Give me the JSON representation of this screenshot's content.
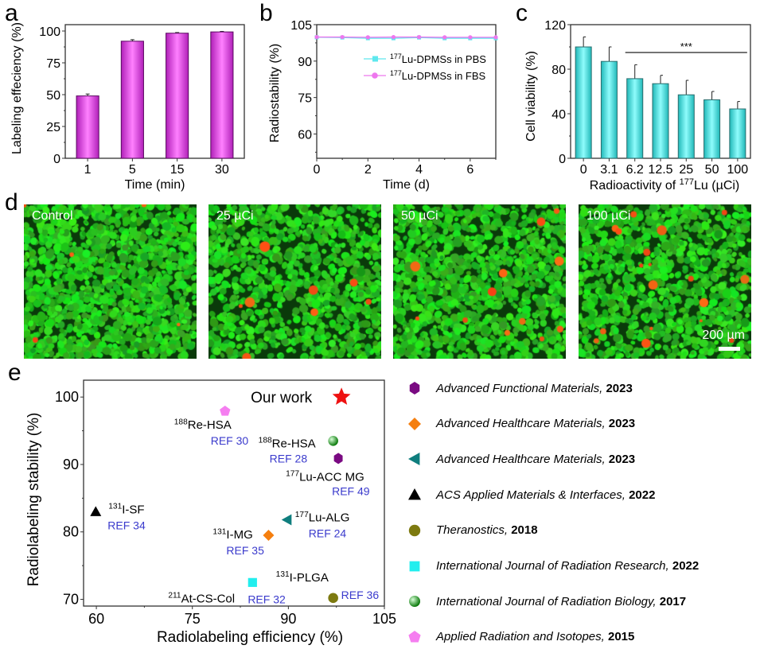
{
  "panel_letters": {
    "a": "a",
    "b": "b",
    "c": "c",
    "d": "d",
    "e": "e"
  },
  "chart_data": [
    {
      "id": "a",
      "type": "bar",
      "title": "",
      "xlabel": "Time (min)",
      "ylabel": "Labeling effeciency (%)",
      "categories": [
        "1",
        "5",
        "15",
        "30"
      ],
      "values": [
        49,
        92,
        98.3,
        99.3
      ],
      "errors": [
        1.5,
        1.2,
        0.5,
        0.4
      ],
      "ylim": [
        0,
        105
      ],
      "yticks": [
        0,
        25,
        50,
        75,
        100
      ],
      "bar_color": "#e040e8",
      "grid": false
    },
    {
      "id": "b",
      "type": "line",
      "title": "",
      "xlabel": "Time (d)",
      "ylabel": "Radiostability (%)",
      "x": [
        0,
        1,
        2,
        3,
        4,
        5,
        6,
        7
      ],
      "xlim": [
        0,
        7
      ],
      "xticks": [
        0,
        2,
        4,
        6
      ],
      "ylim": [
        50,
        105
      ],
      "yticks": [
        60,
        75,
        90,
        105
      ],
      "series": [
        {
          "name": "177Lu-DPMSs in PBS",
          "sup": "177",
          "label": "Lu-DPMSs in PBS",
          "color": "#5ee8ee",
          "marker": "square",
          "values": [
            99.8,
            99.7,
            99.4,
            99.4,
            99.7,
            99.4,
            99.4,
            99.4
          ]
        },
        {
          "name": "177Lu-DPMSs in FBS",
          "sup": "177",
          "label": "Lu-DPMSs in FBS",
          "color": "#ee77ee",
          "marker": "circle",
          "values": [
            99.9,
            99.9,
            99.8,
            99.9,
            99.9,
            99.8,
            99.8,
            99.8
          ]
        }
      ],
      "legend": "center-right",
      "grid": false
    },
    {
      "id": "c",
      "type": "bar",
      "title": "",
      "xlabel_pre": "Radioactivity of ",
      "xlabel_sup": "177",
      "xlabel_post": "Lu (µCi)",
      "ylabel": "Cell viability (%)",
      "categories": [
        "0",
        "3.1",
        "6.2",
        "12.5",
        "25",
        "50",
        "100"
      ],
      "values": [
        100,
        87,
        71.5,
        67,
        57,
        52.5,
        44.3
      ],
      "errors": [
        9,
        13,
        12.5,
        7.5,
        13,
        7.5,
        6.7
      ],
      "ylim": [
        0,
        120
      ],
      "yticks": [
        0,
        40,
        80,
        120
      ],
      "bar_color": "#3fe0e0",
      "significance": {
        "label": "***",
        "from": "6.2",
        "to": "100",
        "y": 95
      },
      "grid": false
    },
    {
      "id": "e",
      "type": "scatter",
      "title": "",
      "xlabel": "Radiolabeling efficiency (%)",
      "ylabel": "Radiolabeling stability (%)",
      "xlim": [
        58,
        105
      ],
      "xticks": [
        60,
        75,
        90,
        105
      ],
      "ylim": [
        69,
        102.5
      ],
      "yticks": [
        70,
        80,
        90,
        100
      ],
      "points": [
        {
          "name": "Our work",
          "x": 98.3,
          "y": 100,
          "marker": "star",
          "color": "#ee1111",
          "label": "Our work",
          "sup": "",
          "ref": ""
        },
        {
          "name": "188Re-HSA (REF 30)",
          "x": 80.1,
          "y": 97.9,
          "marker": "pentagon",
          "color": "#f57ef0",
          "sup": "188",
          "label": "Re-HSA",
          "ref": "REF 30"
        },
        {
          "name": "188Re-HSA (REF 28)",
          "x": 97,
          "y": 93.5,
          "marker": "sphere",
          "color": "#118811",
          "sup": "188",
          "label": "Re-HSA",
          "ref": "REF 28"
        },
        {
          "name": "177Lu-ACC MG (REF 49)",
          "x": 97.8,
          "y": 90.9,
          "marker": "hexagon",
          "color": "#7a0a82",
          "sup": "177",
          "label": "Lu-ACC MG",
          "ref": "REF 49"
        },
        {
          "name": "131I-SF (REF 34)",
          "x": 59.9,
          "y": 83,
          "marker": "triangle-up",
          "color": "#000000",
          "sup": "131",
          "label": "I-SF",
          "ref": "REF 34"
        },
        {
          "name": "177Lu-ALG (REF 24)",
          "x": 89.8,
          "y": 81.8,
          "marker": "triangle-left",
          "color": "#0f7e7e",
          "sup": "177",
          "label": "Lu-ALG",
          "ref": "REF 24"
        },
        {
          "name": "131I-MG (REF 35)",
          "x": 86.9,
          "y": 79.5,
          "marker": "diamond",
          "color": "#f57f0f",
          "sup": "131",
          "label": "I-MG",
          "ref": "REF 35"
        },
        {
          "name": "211At-CS-Col (REF 32)",
          "x": 84.4,
          "y": 72.5,
          "marker": "square",
          "color": "#22eeee",
          "sup": "211",
          "label": "At-CS-Col",
          "ref": "REF 32"
        },
        {
          "name": "131I-PLGA (REF 36)",
          "x": 97,
          "y": 70.2,
          "marker": "circle",
          "color": "#7d7a10",
          "sup": "131",
          "label": "I-PLGA",
          "ref": "REF 36"
        }
      ],
      "ref_color": "#3a3acc",
      "legend": [
        {
          "marker": "hexagon",
          "color": "#7a0a82",
          "journal": "Advanced Functional Materials",
          "year": "2023"
        },
        {
          "marker": "diamond",
          "color": "#f57f0f",
          "journal": "Advanced Healthcare Materials,",
          "year": "2023"
        },
        {
          "marker": "triangle-left",
          "color": "#0f7e7e",
          "journal": "Advanced Healthcare Materials",
          "year": "2023"
        },
        {
          "marker": "triangle-up",
          "color": "#000000",
          "journal": "ACS Applied Materials & Interfaces",
          "year": "2022"
        },
        {
          "marker": "circle",
          "color": "#7d7a10",
          "journal": "Theranostics",
          "year": "2018"
        },
        {
          "marker": "square",
          "color": "#22eeee",
          "journal": "International Journal of Radiation Research",
          "year": "2022"
        },
        {
          "marker": "sphere",
          "color": "#118811",
          "journal": "International Journal of Radiation Biology",
          "year": "2017"
        },
        {
          "marker": "pentagon",
          "color": "#f57ef0",
          "journal": "Applied Radiation and Isotopes",
          "year": "2015"
        }
      ]
    }
  ],
  "micrographs": [
    {
      "label": "Control",
      "red_cells": 5
    },
    {
      "label": "25 µCi",
      "red_cells": 8
    },
    {
      "label": "50 µCi",
      "red_cells": 12
    },
    {
      "label": "100 µCi",
      "red_cells": 18
    }
  ],
  "scale_bar": "200 µm"
}
